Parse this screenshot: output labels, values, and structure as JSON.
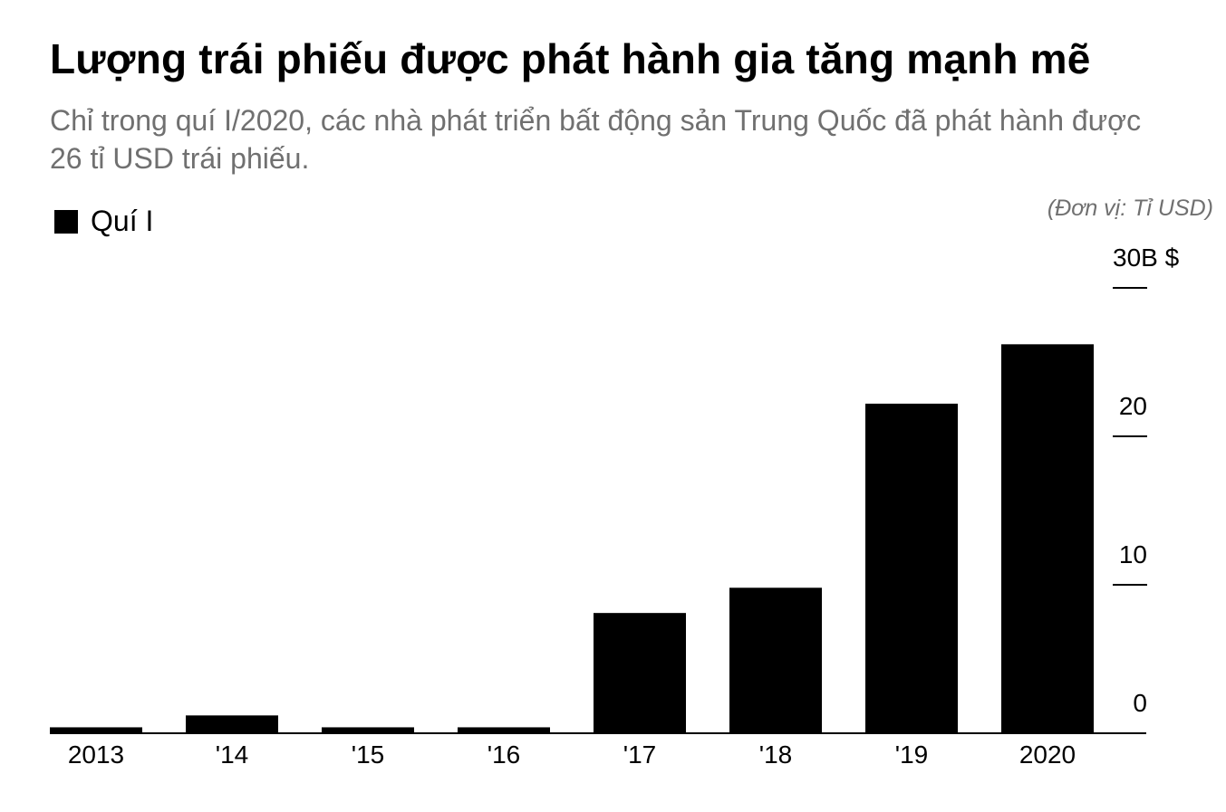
{
  "title": "Lượng trái phiếu được phát hành gia tăng mạnh mẽ",
  "subtitle": "Chỉ trong quí I/2020, các nhà phát triển bất động sản Trung Quốc đã phát hành được 26 tỉ USD trái phiếu.",
  "legend": {
    "label": "Quí I",
    "color": "#000000"
  },
  "unit_note": "(Đơn vị: Tỉ USD)",
  "chart_data": {
    "type": "bar",
    "categories": [
      "2013",
      "'14",
      "'15",
      "'16",
      "'17",
      "'18",
      "'19",
      "2020"
    ],
    "series": [
      {
        "name": "Quí I",
        "values": [
          0.4,
          1.2,
          0.4,
          0.4,
          8.1,
          9.8,
          22.2,
          26.2
        ],
        "color": "#000000"
      }
    ],
    "ylim": [
      0,
      30
    ],
    "y_ticks": [
      0,
      10,
      20,
      30
    ],
    "y_tick_labels": [
      "0",
      "10",
      "20",
      "30B $"
    ],
    "y_axis_side": "right",
    "grid": false,
    "legend_position": "top-left"
  }
}
